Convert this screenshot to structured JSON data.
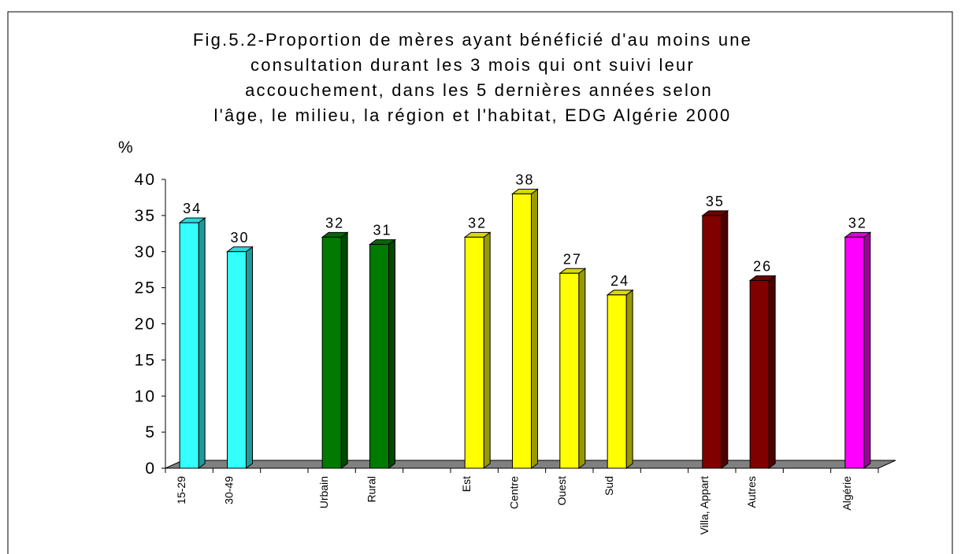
{
  "chart_data": {
    "type": "bar3d",
    "title": [
      "Fig.5.2-Proportion de  mères ayant bénéficié d'au moins une",
      "consultation durant les 3 mois qui ont suivi leur",
      "accouchement, dans les 5 dernières années selon",
      "l'âge, le milieu, la région et l'habitat, EDG Algérie 2000"
    ],
    "y_label": "%",
    "categories": [
      "15-29",
      "30-49",
      null,
      "Urbain",
      "Rural",
      null,
      "Est",
      "Centre",
      "Ouest",
      "Sud",
      null,
      "Villa, Appart",
      "Autres",
      null,
      "Algérie"
    ],
    "values": [
      34,
      30,
      null,
      32,
      31,
      null,
      32,
      38,
      27,
      24,
      null,
      35,
      26,
      null,
      32
    ],
    "colors": [
      "#33ffff",
      "#33ffff",
      null,
      "#007a00",
      "#007a00",
      null,
      "#ffff00",
      "#ffff00",
      "#ffff00",
      "#ffff00",
      null,
      "#800000",
      "#800000",
      null,
      "#ff00ff"
    ],
    "ylim": [
      0,
      40
    ],
    "yticks": [
      0,
      5,
      10,
      15,
      20,
      25,
      30,
      35,
      40
    ]
  }
}
